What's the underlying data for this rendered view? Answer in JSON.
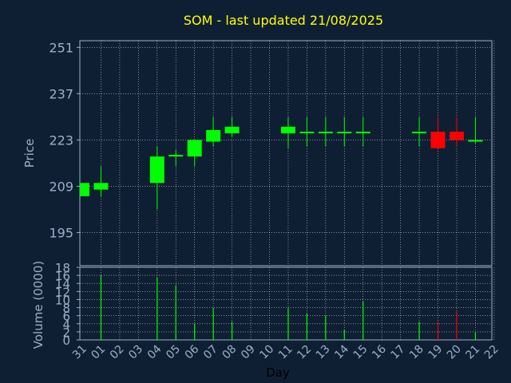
{
  "chart_data": [
    {
      "type": "candlestick",
      "title": "SOM - last updated 21/08/2025",
      "ylabel": "Price",
      "ylim": [
        185,
        253
      ],
      "yticks": [
        195,
        209,
        223,
        237,
        251
      ],
      "grid": true,
      "colors": {
        "up": "#00ff00",
        "down": "#ff0000",
        "background": "#0f1f33",
        "axis": "#9ab0c8",
        "grid": "#ffffff",
        "title": "#ffff00"
      },
      "candles": [
        {
          "day": "31",
          "open": 206,
          "high": 210,
          "low": 206,
          "close": 210
        },
        {
          "day": "01",
          "open": 208,
          "high": 215,
          "low": 206,
          "close": 210
        },
        {
          "day": "04",
          "open": 210,
          "high": 221,
          "low": 202,
          "close": 218
        },
        {
          "day": "05",
          "open": 218,
          "high": 220,
          "low": 215,
          "close": 218.5
        },
        {
          "day": "06",
          "open": 218,
          "high": 223,
          "low": 215,
          "close": 223
        },
        {
          "day": "07",
          "open": 222.5,
          "high": 230,
          "low": 221,
          "close": 226
        },
        {
          "day": "08",
          "open": 225,
          "high": 230,
          "low": 224,
          "close": 227
        },
        {
          "day": "11",
          "open": 225,
          "high": 230,
          "low": 220.5,
          "close": 227
        },
        {
          "day": "12",
          "open": 225,
          "high": 230,
          "low": 221,
          "close": 225.5
        },
        {
          "day": "13",
          "open": 225,
          "high": 230,
          "low": 221,
          "close": 225.5
        },
        {
          "day": "14",
          "open": 225,
          "high": 230,
          "low": 221,
          "close": 225.5
        },
        {
          "day": "15",
          "open": 225,
          "high": 230,
          "low": 221,
          "close": 225.5
        },
        {
          "day": "18",
          "open": 225,
          "high": 230,
          "low": 221,
          "close": 225.5
        },
        {
          "day": "19",
          "open": 225.5,
          "high": 230,
          "low": 220.5,
          "close": 220.5
        },
        {
          "day": "20",
          "open": 225.5,
          "high": 230,
          "low": 221,
          "close": 223
        },
        {
          "day": "21",
          "open": 222.5,
          "high": 230,
          "low": 222,
          "close": 223
        }
      ]
    },
    {
      "type": "bar",
      "ylabel": "Volume (0000)",
      "xlabel": "Day",
      "ylim": [
        0,
        18
      ],
      "yticks": [
        0,
        2,
        4,
        6,
        8,
        10,
        12,
        14,
        16,
        18
      ],
      "grid": true,
      "categories": [
        "31",
        "01",
        "02",
        "03",
        "04",
        "05",
        "06",
        "07",
        "08",
        "09",
        "10",
        "11",
        "12",
        "13",
        "14",
        "15",
        "16",
        "17",
        "18",
        "19",
        "20",
        "21",
        "22"
      ],
      "volumes": [
        {
          "day": "01",
          "value": 16,
          "direction": "up"
        },
        {
          "day": "04",
          "value": 15.5,
          "direction": "up"
        },
        {
          "day": "05",
          "value": 13.5,
          "direction": "up"
        },
        {
          "day": "06",
          "value": 4,
          "direction": "up"
        },
        {
          "day": "07",
          "value": 8,
          "direction": "up"
        },
        {
          "day": "08",
          "value": 4.5,
          "direction": "up"
        },
        {
          "day": "11",
          "value": 8,
          "direction": "up"
        },
        {
          "day": "12",
          "value": 6.5,
          "direction": "up"
        },
        {
          "day": "13",
          "value": 6,
          "direction": "up"
        },
        {
          "day": "14",
          "value": 2.5,
          "direction": "up"
        },
        {
          "day": "15",
          "value": 9.5,
          "direction": "up"
        },
        {
          "day": "18",
          "value": 4.5,
          "direction": "up"
        },
        {
          "day": "19",
          "value": 4.5,
          "direction": "down"
        },
        {
          "day": "20",
          "value": 7,
          "direction": "down"
        },
        {
          "day": "21",
          "value": 2,
          "direction": "up"
        }
      ]
    }
  ]
}
